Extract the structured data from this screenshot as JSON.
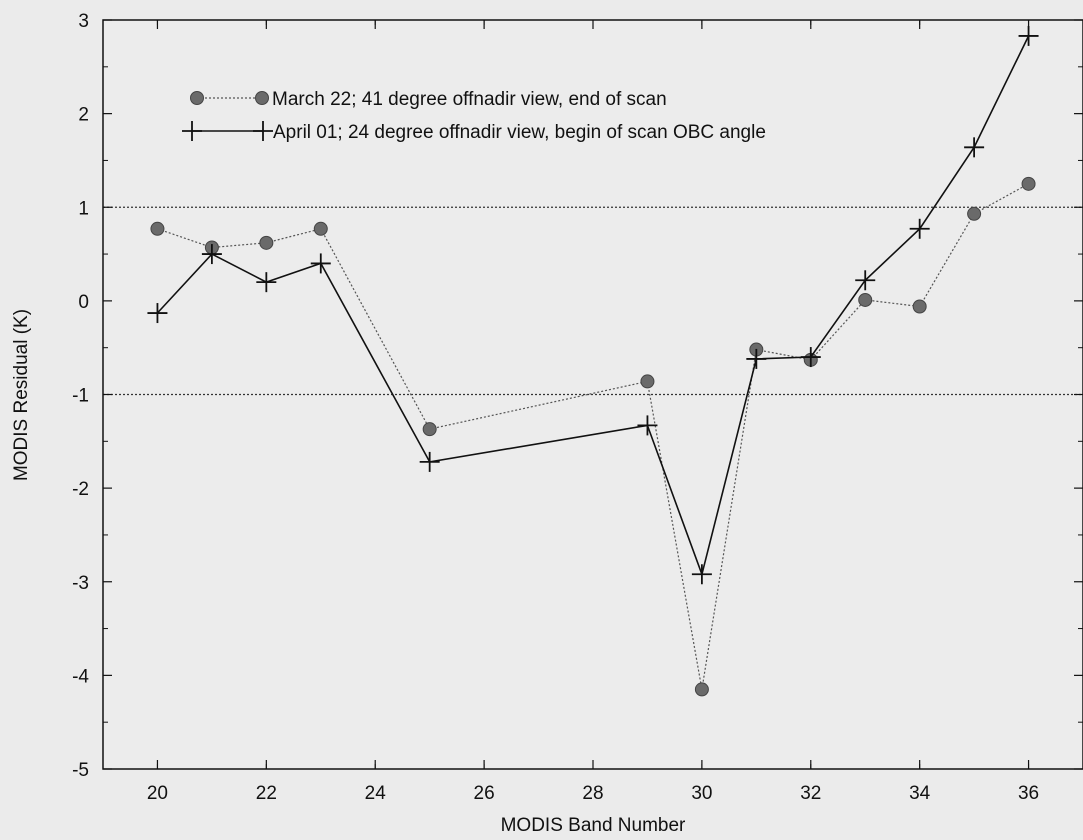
{
  "chart_data": {
    "type": "line",
    "xlabel": "MODIS Band Number",
    "ylabel": "MODIS Residual (K)",
    "xlim": [
      19,
      37
    ],
    "ylim": [
      -5,
      3
    ],
    "x_ticks": [
      20,
      22,
      24,
      26,
      28,
      30,
      32,
      34,
      36
    ],
    "y_ticks": [
      -5,
      -4,
      -3,
      -2,
      -1,
      0,
      1,
      2,
      3
    ],
    "reference_lines": [
      1,
      -1
    ],
    "legend_position": "top-left",
    "grid": false,
    "series": [
      {
        "name": "March 22; 41 degree offnadir view, end of scan",
        "style": "dotted",
        "marker": "filled-circle",
        "color": "#555555",
        "x": [
          20,
          21,
          22,
          23,
          25,
          29,
          30,
          31,
          32,
          33,
          34,
          35,
          36
        ],
        "y": [
          0.77,
          0.57,
          0.62,
          0.77,
          -1.37,
          -0.86,
          -4.15,
          -0.52,
          -0.63,
          0.01,
          -0.06,
          0.93,
          1.25
        ]
      },
      {
        "name": "April 01; 24 degree offnadir view, begin of scan OBC angle",
        "style": "solid",
        "marker": "plus",
        "color": "#111111",
        "x": [
          20,
          21,
          22,
          23,
          25,
          29,
          30,
          31,
          32,
          33,
          34,
          35,
          36
        ],
        "y": [
          -0.13,
          0.5,
          0.2,
          0.4,
          -1.72,
          -1.33,
          -2.92,
          -0.62,
          -0.6,
          0.22,
          0.77,
          1.64,
          2.83
        ]
      }
    ]
  }
}
